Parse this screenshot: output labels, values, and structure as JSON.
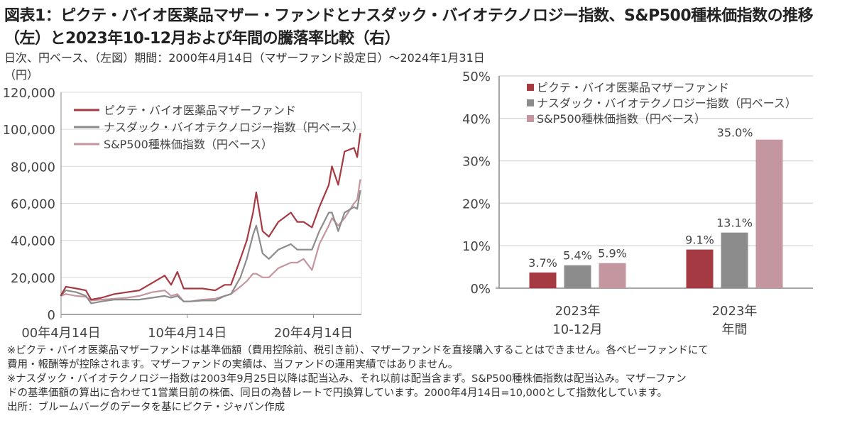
{
  "title_line1": "図表1：ピクテ・バイオ医薬品マザー・ファンドとナスダック・バイオテクノロジー指数、S&P500種株価指数の推移",
  "title_line2": "（左）と2023年10-12月および年間の騰落率比較（右）",
  "subtitle": "日次、円ベース、（左図）期間：2000年4月14日（マザーファンド設定日）～2024年1月31日",
  "colors": {
    "fund": "#a53a42",
    "nasdaq_bio": "#8c8c8c",
    "sp500": "#c4969f",
    "grid": "#d9d9d9",
    "axis": "#888888"
  },
  "chart_data": [
    {
      "type": "line",
      "ylabel": "（円）",
      "ylim": [
        0,
        120000
      ],
      "yticks": [
        "0",
        "20,000",
        "40,000",
        "60,000",
        "80,000",
        "100,000",
        "120,000"
      ],
      "ytick_values": [
        0,
        20000,
        40000,
        60000,
        80000,
        100000,
        120000
      ],
      "xlim": [
        "2000-04-14",
        "2024-01-31"
      ],
      "xticks": [
        "00年4月14日",
        "10年4月14日",
        "20年4月14日"
      ],
      "xtick_values": [
        "2000-04-14",
        "2010-04-14",
        "2020-04-14"
      ],
      "grid": true,
      "legend": "top-left",
      "x": [
        "2000-04",
        "2000-09",
        "2001-07",
        "2002-04",
        "2002-09",
        "2003-07",
        "2004-07",
        "2005-07",
        "2006-07",
        "2007-07",
        "2008-07",
        "2009-01",
        "2009-07",
        "2010-01",
        "2010-07",
        "2011-07",
        "2012-07",
        "2013-04",
        "2013-10",
        "2014-07",
        "2015-01",
        "2015-07",
        "2015-10",
        "2016-04",
        "2016-10",
        "2017-07",
        "2018-07",
        "2019-01",
        "2019-07",
        "2020-03",
        "2020-10",
        "2021-07",
        "2021-10",
        "2022-04",
        "2022-10",
        "2023-07",
        "2023-10",
        "2024-01"
      ],
      "series": [
        {
          "name": "ピクテ・バイオ医薬品マザーファンド",
          "values": [
            10000,
            15000,
            14000,
            13000,
            8000,
            9000,
            11000,
            12000,
            13000,
            17000,
            21000,
            16000,
            23000,
            14000,
            14000,
            14000,
            13000,
            16000,
            16000,
            30000,
            40000,
            55000,
            66000,
            45000,
            42000,
            50000,
            55000,
            50000,
            50000,
            47000,
            58000,
            70000,
            80000,
            70000,
            88000,
            90000,
            85000,
            98000
          ]
        },
        {
          "name": "ナスダック・バイオテクノロジー指数（円ベース）",
          "values": [
            10000,
            13000,
            12000,
            10000,
            6000,
            7000,
            8000,
            8000,
            8000,
            9000,
            10000,
            9000,
            10000,
            7000,
            7000,
            7500,
            7500,
            10000,
            11000,
            20000,
            30000,
            43000,
            48000,
            33000,
            30000,
            35000,
            38000,
            35000,
            35000,
            35000,
            45000,
            55000,
            55000,
            45000,
            55000,
            58000,
            57000,
            67000
          ]
        },
        {
          "name": "S&P500種株価指数（円ベース）",
          "values": [
            10000,
            11000,
            10000,
            9500,
            7500,
            8000,
            8500,
            9000,
            10000,
            12000,
            13000,
            10000,
            11000,
            7000,
            7000,
            8000,
            8500,
            10000,
            11000,
            15000,
            18000,
            22000,
            22000,
            20000,
            20000,
            25000,
            28000,
            28000,
            30000,
            24000,
            38000,
            48000,
            52000,
            48000,
            52000,
            60000,
            62000,
            73000
          ]
        }
      ]
    },
    {
      "type": "bar",
      "ylim": [
        0,
        50
      ],
      "yticks": [
        "0%",
        "10%",
        "20%",
        "30%",
        "40%",
        "50%"
      ],
      "ytick_values": [
        0,
        10,
        20,
        30,
        40,
        50
      ],
      "grid": true,
      "legend": "top-left",
      "categories": [
        [
          "2023年",
          "10-12月"
        ],
        [
          "2023年",
          "年間"
        ]
      ],
      "series": [
        {
          "name": "ピクテ・バイオ医薬品マザーファンド",
          "values": [
            3.7,
            9.1
          ],
          "labels": [
            "3.7%",
            "9.1%"
          ]
        },
        {
          "name": "ナスダック・バイオテクノロジー指数（円ベース）",
          "values": [
            5.4,
            13.1
          ],
          "labels": [
            "5.4%",
            "13.1%"
          ]
        },
        {
          "name": "S&P500種株価指数（円ベース）",
          "values": [
            5.9,
            35.0
          ],
          "labels": [
            "5.9%",
            "35.0%"
          ]
        }
      ]
    }
  ],
  "notes": [
    "※ピクテ・バイオ医薬品マザーファンドは基準価額（費用控除前、税引き前）、マザーファンドを直接購入することはできません。各ベビーファンドにて",
    "費用・報酬等が控除されます。マザーファンドの実績は、当ファンドの運用実績ではありません。",
    "※ナスダック・バイオテクノロジー指数は2003年9月25日以降は配当込み、それ以前は配当含まず。S&P500種株価指数は配当込み。マザーファン",
    "ドの基準価額の算出に合わせて1営業日前の株価、同日の為替レートで円換算しています。2000年4月14日=10,000として指数化しています。",
    "出所：ブルームバーグのデータを基にピクテ・ジャパン作成"
  ]
}
